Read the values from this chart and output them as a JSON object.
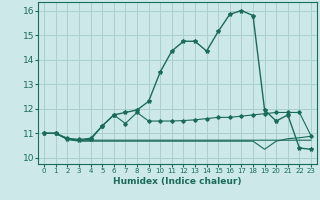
{
  "xlabel": "Humidex (Indice chaleur)",
  "background_color": "#cce8e8",
  "grid_color": "#aacfcf",
  "line_color": "#1a6b5a",
  "xlim": [
    -0.5,
    23.5
  ],
  "ylim": [
    9.75,
    16.35
  ],
  "xticks": [
    0,
    1,
    2,
    3,
    4,
    5,
    6,
    7,
    8,
    9,
    10,
    11,
    12,
    13,
    14,
    15,
    16,
    17,
    18,
    19,
    20,
    21,
    22,
    23
  ],
  "yticks": [
    10,
    11,
    12,
    13,
    14,
    15,
    16
  ],
  "series": [
    [
      11.0,
      11.0,
      10.8,
      10.75,
      10.8,
      11.3,
      11.75,
      11.4,
      11.85,
      11.5,
      11.5,
      11.5,
      11.52,
      11.55,
      11.6,
      11.65,
      11.65,
      11.7,
      11.75,
      11.8,
      11.85,
      11.85,
      11.85,
      10.9
    ],
    [
      11.0,
      11.0,
      10.75,
      10.72,
      10.72,
      10.72,
      10.72,
      10.72,
      10.72,
      10.72,
      10.72,
      10.72,
      10.72,
      10.72,
      10.72,
      10.72,
      10.72,
      10.72,
      10.72,
      10.72,
      10.72,
      10.72,
      10.72,
      10.72
    ],
    [
      11.0,
      11.0,
      10.75,
      10.68,
      10.68,
      10.68,
      10.68,
      10.68,
      10.68,
      10.68,
      10.68,
      10.68,
      10.68,
      10.68,
      10.68,
      10.68,
      10.68,
      10.68,
      10.68,
      10.35,
      10.68,
      10.78,
      10.82,
      10.88
    ],
    [
      11.0,
      11.0,
      10.78,
      10.72,
      10.75,
      11.3,
      11.75,
      11.85,
      11.95,
      12.3,
      13.5,
      14.35,
      14.75,
      14.75,
      14.35,
      15.15,
      15.85,
      16.0,
      15.8,
      11.95,
      11.5,
      11.75,
      10.4,
      10.35
    ]
  ]
}
